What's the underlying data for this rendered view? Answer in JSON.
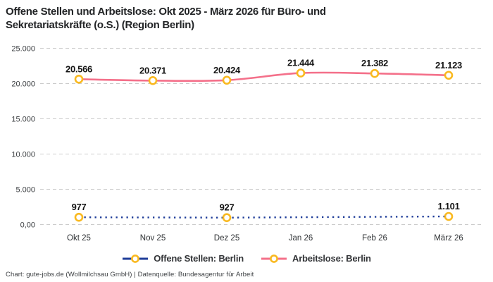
{
  "title": "Offene Stellen und Arbeitslose: Okt 2025 - März 2026 für Büro- und Sekretariatskräfte (o.S.) (Region Berlin)",
  "attribution": "Chart: gute-jobs.de (Wollmilchsau GmbH) | Datenquelle: Bundesagentur für Arbeit",
  "colors": {
    "background": "#ffffff",
    "grid": "#cccccc",
    "marker_ring": "#f9b920",
    "marker_fill": "#ffffff",
    "title_text": "#222426",
    "axis_text": "#3a3d40",
    "data_label_text": "#141414",
    "series_open_positions": "#1f3d99",
    "series_unemployed": "#f4708a"
  },
  "chart_data": {
    "type": "line",
    "title": "Offene Stellen und Arbeitslose: Okt 2025 - März 2026 für Büro- und Sekretariatskräfte (o.S.) (Region Berlin)",
    "categories": [
      "Okt 25",
      "Nov 25",
      "Dez 25",
      "Jan 26",
      "Feb 26",
      "März 26"
    ],
    "series": [
      {
        "name": "Offene Stellen: Berlin",
        "color": "#1f3d99",
        "line_style": "dotted",
        "values": [
          977,
          null,
          927,
          null,
          null,
          1101
        ],
        "point_labels": [
          "977",
          null,
          "927",
          null,
          null,
          "1.101"
        ]
      },
      {
        "name": "Arbeitslose: Berlin",
        "color": "#f4708a",
        "line_style": "solid",
        "values": [
          20566,
          20371,
          20424,
          21444,
          21382,
          21123
        ],
        "point_labels": [
          "20.566",
          "20.371",
          "20.424",
          "21.444",
          "21.382",
          "21.123"
        ]
      }
    ],
    "ylim": [
      0,
      25000
    ],
    "yticks": [
      0,
      5000,
      10000,
      15000,
      20000,
      25000
    ],
    "ytick_labels": [
      "0,00",
      "5.000",
      "10.000",
      "15.000",
      "20.000",
      "25.000"
    ],
    "grid": "dashed-horizontal",
    "legend_position": "bottom"
  }
}
